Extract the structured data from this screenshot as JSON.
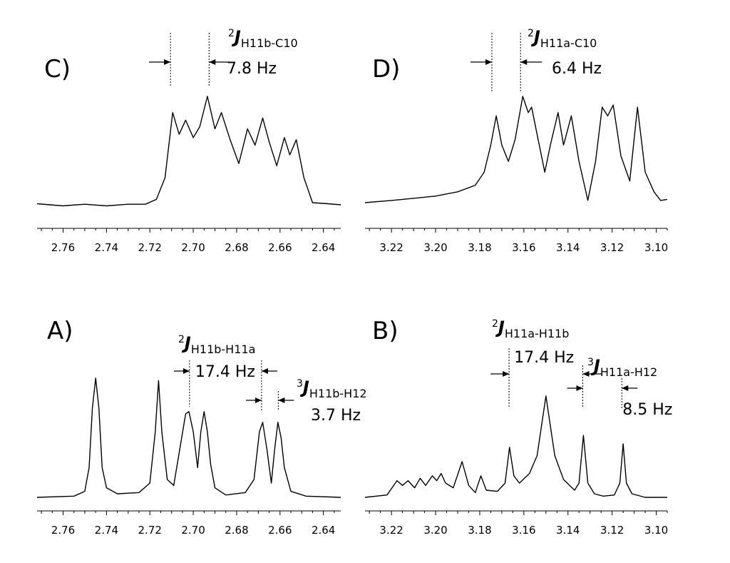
{
  "chart_data": [
    {
      "id": "C",
      "type": "line",
      "panel_label": "C)",
      "x_ticks": [
        "2.76",
        "2.74",
        "2.72",
        "2.70",
        "2.68",
        "2.66",
        "2.64"
      ],
      "xlim": [
        2.772,
        2.632
      ],
      "series": [
        {
          "x": [
            2.772,
            2.76,
            2.75,
            2.74,
            2.73,
            2.722,
            2.717,
            2.713,
            2.7095,
            2.7065,
            2.7035,
            2.7,
            2.697,
            2.6935,
            2.69,
            2.687,
            2.683,
            2.679,
            2.675,
            2.6715,
            2.668,
            2.665,
            2.6615,
            2.658,
            2.6555,
            2.6525,
            2.649,
            2.645,
            2.638,
            2.632
          ],
          "y": [
            0.01,
            -0.01,
            0.005,
            -0.01,
            0.005,
            0.005,
            0.05,
            0.25,
            0.85,
            0.65,
            0.78,
            0.62,
            0.72,
            1.0,
            0.7,
            0.85,
            0.6,
            0.38,
            0.7,
            0.55,
            0.8,
            0.58,
            0.36,
            0.62,
            0.46,
            0.6,
            0.25,
            0.02,
            0.01,
            0.0
          ]
        }
      ],
      "annotation": {
        "J": "J",
        "sup": "2",
        "sub": "H11b-C10",
        "value": "7.8 Hz",
        "lines_at": [
          2.7105,
          2.6927
        ]
      }
    },
    {
      "id": "D",
      "type": "line",
      "panel_label": "D)",
      "x_ticks": [
        "3.22",
        "3.20",
        "3.18",
        "3.16",
        "3.14",
        "3.12",
        "3.10"
      ],
      "xlim": [
        3.232,
        3.095
      ],
      "series": [
        {
          "x": [
            3.232,
            3.22,
            3.21,
            3.2,
            3.19,
            3.182,
            3.178,
            3.175,
            3.1725,
            3.17,
            3.167,
            3.164,
            3.1605,
            3.158,
            3.1565,
            3.154,
            3.1505,
            3.148,
            3.1445,
            3.142,
            3.1385,
            3.135,
            3.131,
            3.1275,
            3.1245,
            3.122,
            3.1195,
            3.116,
            3.112,
            3.1085,
            3.105,
            3.101,
            3.098,
            3.095
          ],
          "y": [
            0.02,
            0.04,
            0.06,
            0.08,
            0.12,
            0.18,
            0.3,
            0.55,
            0.82,
            0.55,
            0.4,
            0.6,
            1.0,
            0.85,
            0.9,
            0.65,
            0.3,
            0.55,
            0.85,
            0.55,
            0.82,
            0.4,
            0.04,
            0.4,
            0.9,
            0.82,
            0.92,
            0.45,
            0.22,
            0.9,
            0.3,
            0.12,
            0.04,
            0.05
          ]
        }
      ],
      "annotation": {
        "J": "J",
        "sup": "2",
        "sub": "H11a-C10",
        "value": "6.4 Hz",
        "lines_at": [
          3.1745,
          3.1615
        ]
      }
    },
    {
      "id": "A",
      "type": "line",
      "panel_label": "A)",
      "x_ticks": [
        "2.76",
        "2.74",
        "2.72",
        "2.70",
        "2.68",
        "2.66",
        "2.64"
      ],
      "xlim": [
        2.772,
        2.632
      ],
      "series": [
        {
          "x": [
            2.772,
            2.755,
            2.75,
            2.748,
            2.7465,
            2.745,
            2.7435,
            2.742,
            2.74,
            2.735,
            2.725,
            2.72,
            2.7175,
            2.716,
            2.7145,
            2.712,
            2.709,
            2.7035,
            2.702,
            2.7,
            2.698,
            2.6965,
            2.695,
            2.6935,
            2.692,
            2.69,
            2.685,
            2.676,
            2.672,
            2.6695,
            2.668,
            2.666,
            2.664,
            2.6625,
            2.661,
            2.6595,
            2.658,
            2.655,
            2.648,
            2.632
          ],
          "y": [
            0.0,
            0.01,
            0.05,
            0.25,
            0.75,
            1.0,
            0.75,
            0.25,
            0.08,
            0.03,
            0.04,
            0.12,
            0.55,
            0.98,
            0.55,
            0.15,
            0.1,
            0.7,
            0.72,
            0.55,
            0.25,
            0.55,
            0.72,
            0.55,
            0.28,
            0.08,
            0.02,
            0.04,
            0.15,
            0.55,
            0.63,
            0.4,
            0.12,
            0.4,
            0.63,
            0.5,
            0.25,
            0.05,
            0.01,
            0.0
          ]
        }
      ],
      "annotations": [
        {
          "J": "J",
          "sup": "2",
          "sub": "H11b-H11a",
          "value": "17.4 Hz",
          "lines_at": [
            2.7017,
            2.6685
          ]
        },
        {
          "J": "J",
          "sup": "3",
          "sub": "H11b-H12",
          "value": "3.7 Hz",
          "lines_at": [
            2.6685,
            2.6608
          ]
        }
      ]
    },
    {
      "id": "B",
      "type": "line",
      "panel_label": "B)",
      "x_ticks": [
        "3.22",
        "3.20",
        "3.18",
        "3.16",
        "3.14",
        "3.12",
        "3.10"
      ],
      "xlim": [
        3.232,
        3.095
      ],
      "series": [
        {
          "x": [
            3.232,
            3.222,
            3.2175,
            3.215,
            3.2125,
            3.2095,
            3.207,
            3.2045,
            3.2015,
            3.1995,
            3.1975,
            3.1955,
            3.192,
            3.188,
            3.185,
            3.182,
            3.1795,
            3.177,
            3.172,
            3.1685,
            3.1665,
            3.1645,
            3.162,
            3.1575,
            3.154,
            3.152,
            3.15,
            3.148,
            3.146,
            3.142,
            3.137,
            3.135,
            3.133,
            3.131,
            3.128,
            3.124,
            3.119,
            3.1165,
            3.115,
            3.1135,
            3.111,
            3.105,
            3.095
          ],
          "y": [
            0.0,
            0.02,
            0.14,
            0.1,
            0.14,
            0.08,
            0.16,
            0.1,
            0.18,
            0.14,
            0.2,
            0.12,
            0.08,
            0.3,
            0.1,
            0.04,
            0.18,
            0.06,
            0.05,
            0.12,
            0.42,
            0.18,
            0.12,
            0.2,
            0.35,
            0.6,
            0.85,
            0.6,
            0.35,
            0.15,
            0.06,
            0.12,
            0.52,
            0.12,
            0.03,
            0.01,
            0.02,
            0.12,
            0.45,
            0.12,
            0.03,
            0.0,
            0.0
          ]
        }
      ],
      "annotations": [
        {
          "J": "J",
          "sup": "2",
          "sub": "H11a-H11b",
          "value": "17.4 Hz",
          "lines_at": [
            3.1667,
            3.1333
          ]
        },
        {
          "J": "J",
          "sup": "3",
          "sub": "H11a-H12",
          "value": "8.5 Hz",
          "lines_at": [
            3.1333,
            3.1156
          ]
        }
      ]
    }
  ]
}
